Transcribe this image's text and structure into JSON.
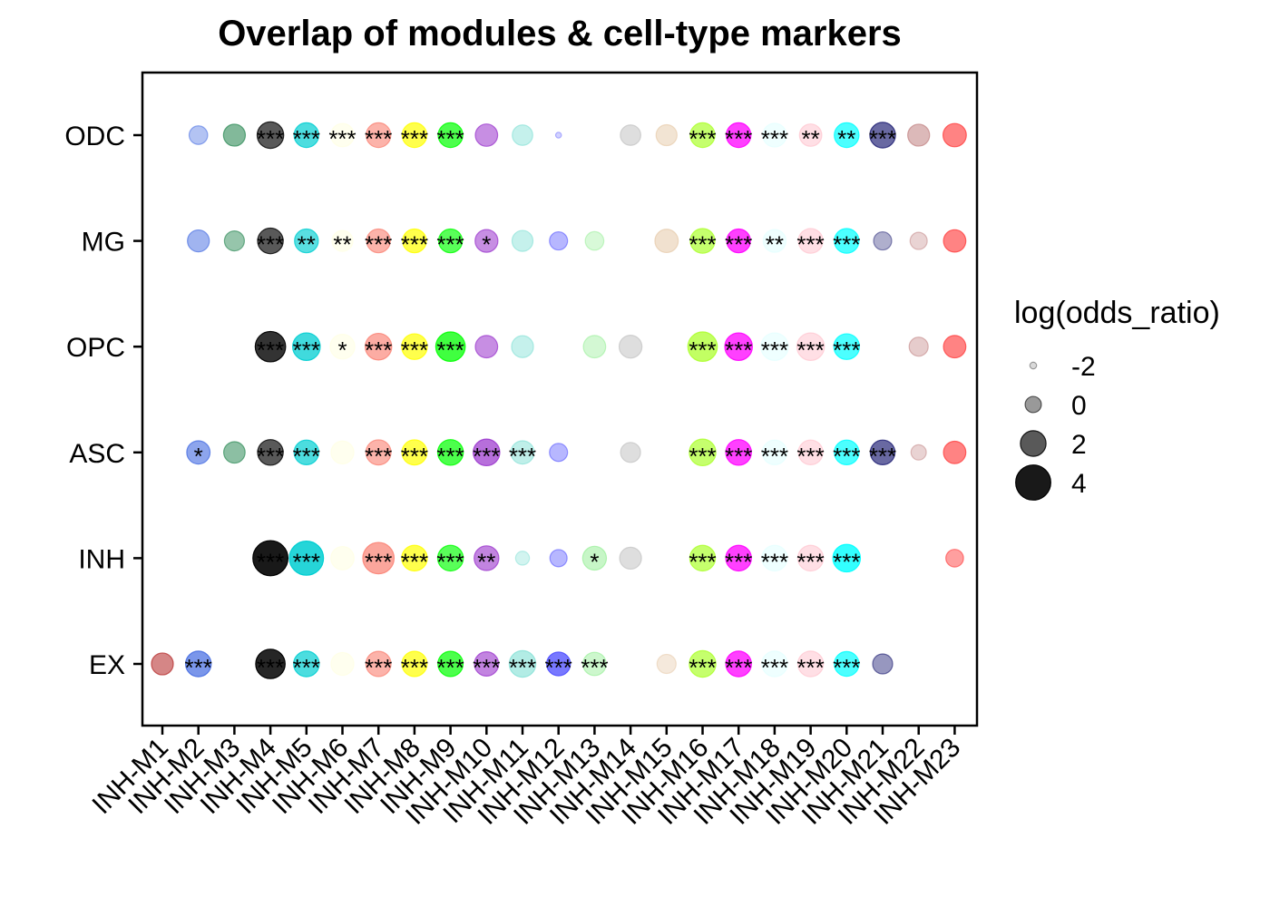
{
  "chart_data": {
    "type": "scatter",
    "title": "Overlap of modules & cell-type markers",
    "xlabel": "",
    "ylabel": "",
    "x_categories": [
      "INH-M1",
      "INH-M2",
      "INH-M3",
      "INH-M4",
      "INH-M5",
      "INH-M6",
      "INH-M7",
      "INH-M8",
      "INH-M9",
      "INH-M10",
      "INH-M11",
      "INH-M12",
      "INH-M13",
      "INH-M14",
      "INH-M15",
      "INH-M16",
      "INH-M17",
      "INH-M18",
      "INH-M19",
      "INH-M20",
      "INH-M21",
      "INH-M22",
      "INH-M23"
    ],
    "y_categories": [
      "EX",
      "INH",
      "ASC",
      "OPC",
      "MG",
      "ODC"
    ],
    "module_colors": {
      "INH-M1": "#B22222",
      "INH-M2": "#4169E1",
      "INH-M3": "#2E8B57",
      "INH-M4": "#000000",
      "INH-M5": "#00CED1",
      "INH-M6": "#FFFFE0",
      "INH-M7": "#FA8072",
      "INH-M8": "#FFFF00",
      "INH-M9": "#00FF00",
      "INH-M10": "#9932CC",
      "INH-M11": "#7FDFD4",
      "INH-M12": "#4B4BFF",
      "INH-M13": "#90EE90",
      "INH-M14": "#BEBEBE",
      "INH-M15": "#E6C9A8",
      "INH-M16": "#ADFF2F",
      "INH-M17": "#FF00FF",
      "INH-M18": "#E0FFFF",
      "INH-M19": "#FFC0CB",
      "INH-M20": "#00FFFF",
      "INH-M21": "#191970",
      "INH-M22": "#C08080",
      "INH-M23": "#FF4040"
    },
    "size_legend": {
      "title": "log(odds_ratio)",
      "breaks": [
        -2,
        0,
        2,
        4
      ]
    },
    "points": {
      "ODC": [
        {
          "m": "INH-M2",
          "lor": 0.5,
          "a": 0.4,
          "sig": ""
        },
        {
          "m": "INH-M3",
          "lor": 1.2,
          "a": 0.6,
          "sig": ""
        },
        {
          "m": "INH-M4",
          "lor": 2.2,
          "a": 0.65,
          "sig": "***"
        },
        {
          "m": "INH-M5",
          "lor": 1.8,
          "a": 0.7,
          "sig": "***"
        },
        {
          "m": "INH-M6",
          "lor": 1.5,
          "a": 0.5,
          "sig": "***"
        },
        {
          "m": "INH-M7",
          "lor": 1.8,
          "a": 0.6,
          "sig": "***"
        },
        {
          "m": "INH-M8",
          "lor": 1.8,
          "a": 0.7,
          "sig": "***"
        },
        {
          "m": "INH-M9",
          "lor": 1.8,
          "a": 0.7,
          "sig": "***"
        },
        {
          "m": "INH-M10",
          "lor": 1.3,
          "a": 0.55,
          "sig": ""
        },
        {
          "m": "INH-M11",
          "lor": 0.9,
          "a": 0.45,
          "sig": ""
        },
        {
          "m": "INH-M12",
          "lor": -2.2,
          "a": 0.25,
          "sig": ""
        },
        {
          "m": "INH-M14",
          "lor": 0.9,
          "a": 0.5,
          "sig": ""
        },
        {
          "m": "INH-M15",
          "lor": 1.0,
          "a": 0.5,
          "sig": ""
        },
        {
          "m": "INH-M16",
          "lor": 1.8,
          "a": 0.7,
          "sig": "***"
        },
        {
          "m": "INH-M17",
          "lor": 1.8,
          "a": 0.75,
          "sig": "***"
        },
        {
          "m": "INH-M18",
          "lor": 1.6,
          "a": 0.5,
          "sig": "***"
        },
        {
          "m": "INH-M19",
          "lor": 1.3,
          "a": 0.5,
          "sig": "**"
        },
        {
          "m": "INH-M20",
          "lor": 1.8,
          "a": 0.7,
          "sig": "**"
        },
        {
          "m": "INH-M21",
          "lor": 2.0,
          "a": 0.65,
          "sig": "***"
        },
        {
          "m": "INH-M22",
          "lor": 1.2,
          "a": 0.55,
          "sig": ""
        },
        {
          "m": "INH-M23",
          "lor": 1.5,
          "a": 0.65,
          "sig": ""
        }
      ],
      "MG": [
        {
          "m": "INH-M2",
          "lor": 1.2,
          "a": 0.5,
          "sig": ""
        },
        {
          "m": "INH-M3",
          "lor": 0.8,
          "a": 0.5,
          "sig": ""
        },
        {
          "m": "INH-M4",
          "lor": 2.0,
          "a": 0.65,
          "sig": "***"
        },
        {
          "m": "INH-M5",
          "lor": 1.6,
          "a": 0.65,
          "sig": "**"
        },
        {
          "m": "INH-M6",
          "lor": 1.0,
          "a": 0.5,
          "sig": "**"
        },
        {
          "m": "INH-M7",
          "lor": 1.6,
          "a": 0.6,
          "sig": "***"
        },
        {
          "m": "INH-M8",
          "lor": 1.6,
          "a": 0.7,
          "sig": "***"
        },
        {
          "m": "INH-M9",
          "lor": 1.6,
          "a": 0.65,
          "sig": "***"
        },
        {
          "m": "INH-M10",
          "lor": 1.4,
          "a": 0.55,
          "sig": "*"
        },
        {
          "m": "INH-M11",
          "lor": 1.0,
          "a": 0.45,
          "sig": ""
        },
        {
          "m": "INH-M12",
          "lor": 0.4,
          "a": 0.4,
          "sig": ""
        },
        {
          "m": "INH-M13",
          "lor": 0.5,
          "a": 0.35,
          "sig": ""
        },
        {
          "m": "INH-M15",
          "lor": 1.5,
          "a": 0.55,
          "sig": ""
        },
        {
          "m": "INH-M16",
          "lor": 1.8,
          "a": 0.7,
          "sig": "***"
        },
        {
          "m": "INH-M17",
          "lor": 1.6,
          "a": 0.75,
          "sig": "***"
        },
        {
          "m": "INH-M18",
          "lor": 1.4,
          "a": 0.5,
          "sig": "**"
        },
        {
          "m": "INH-M19",
          "lor": 1.8,
          "a": 0.5,
          "sig": "***"
        },
        {
          "m": "INH-M20",
          "lor": 1.8,
          "a": 0.7,
          "sig": "***"
        },
        {
          "m": "INH-M21",
          "lor": 0.4,
          "a": 0.35,
          "sig": ""
        },
        {
          "m": "INH-M22",
          "lor": 0.2,
          "a": 0.35,
          "sig": ""
        },
        {
          "m": "INH-M23",
          "lor": 1.3,
          "a": 0.65,
          "sig": ""
        }
      ],
      "OPC": [
        {
          "m": "INH-M4",
          "lor": 3.0,
          "a": 0.8,
          "sig": "***"
        },
        {
          "m": "INH-M5",
          "lor": 2.4,
          "a": 0.75,
          "sig": "***"
        },
        {
          "m": "INH-M6",
          "lor": 1.8,
          "a": 0.5,
          "sig": "*"
        },
        {
          "m": "INH-M7",
          "lor": 2.2,
          "a": 0.65,
          "sig": "***"
        },
        {
          "m": "INH-M8",
          "lor": 2.0,
          "a": 0.7,
          "sig": "***"
        },
        {
          "m": "INH-M9",
          "lor": 2.8,
          "a": 0.75,
          "sig": "***"
        },
        {
          "m": "INH-M10",
          "lor": 1.3,
          "a": 0.55,
          "sig": ""
        },
        {
          "m": "INH-M11",
          "lor": 1.2,
          "a": 0.45,
          "sig": ""
        },
        {
          "m": "INH-M13",
          "lor": 1.3,
          "a": 0.4,
          "sig": ""
        },
        {
          "m": "INH-M14",
          "lor": 1.4,
          "a": 0.5,
          "sig": ""
        },
        {
          "m": "INH-M16",
          "lor": 2.8,
          "a": 0.75,
          "sig": "***"
        },
        {
          "m": "INH-M17",
          "lor": 2.4,
          "a": 0.75,
          "sig": "***"
        },
        {
          "m": "INH-M18",
          "lor": 2.4,
          "a": 0.5,
          "sig": "***"
        },
        {
          "m": "INH-M19",
          "lor": 2.4,
          "a": 0.5,
          "sig": "***"
        },
        {
          "m": "INH-M20",
          "lor": 2.0,
          "a": 0.7,
          "sig": "***"
        },
        {
          "m": "INH-M22",
          "lor": 0.6,
          "a": 0.4,
          "sig": ""
        },
        {
          "m": "INH-M23",
          "lor": 1.3,
          "a": 0.65,
          "sig": ""
        }
      ],
      "ASC": [
        {
          "m": "INH-M2",
          "lor": 1.5,
          "a": 0.6,
          "sig": "*"
        },
        {
          "m": "INH-M3",
          "lor": 1.1,
          "a": 0.55,
          "sig": ""
        },
        {
          "m": "INH-M4",
          "lor": 2.0,
          "a": 0.65,
          "sig": "***"
        },
        {
          "m": "INH-M5",
          "lor": 1.8,
          "a": 0.7,
          "sig": "***"
        },
        {
          "m": "INH-M6",
          "lor": 1.4,
          "a": 0.5,
          "sig": ""
        },
        {
          "m": "INH-M7",
          "lor": 1.9,
          "a": 0.6,
          "sig": "***"
        },
        {
          "m": "INH-M8",
          "lor": 1.9,
          "a": 0.7,
          "sig": "***"
        },
        {
          "m": "INH-M9",
          "lor": 2.0,
          "a": 0.7,
          "sig": "***"
        },
        {
          "m": "INH-M10",
          "lor": 2.2,
          "a": 0.7,
          "sig": "***"
        },
        {
          "m": "INH-M11",
          "lor": 1.5,
          "a": 0.5,
          "sig": "***"
        },
        {
          "m": "INH-M12",
          "lor": 0.4,
          "a": 0.4,
          "sig": ""
        },
        {
          "m": "INH-M14",
          "lor": 0.8,
          "a": 0.5,
          "sig": ""
        },
        {
          "m": "INH-M16",
          "lor": 2.2,
          "a": 0.7,
          "sig": "***"
        },
        {
          "m": "INH-M17",
          "lor": 2.0,
          "a": 0.75,
          "sig": "***"
        },
        {
          "m": "INH-M18",
          "lor": 1.8,
          "a": 0.5,
          "sig": "***"
        },
        {
          "m": "INH-M19",
          "lor": 1.8,
          "a": 0.5,
          "sig": "***"
        },
        {
          "m": "INH-M20",
          "lor": 1.8,
          "a": 0.7,
          "sig": "***"
        },
        {
          "m": "INH-M21",
          "lor": 1.8,
          "a": 0.65,
          "sig": "***"
        },
        {
          "m": "INH-M22",
          "lor": -0.2,
          "a": 0.35,
          "sig": ""
        },
        {
          "m": "INH-M23",
          "lor": 1.3,
          "a": 0.65,
          "sig": ""
        }
      ],
      "INH": [
        {
          "m": "INH-M4",
          "lor": 4.0,
          "a": 0.9,
          "sig": "***"
        },
        {
          "m": "INH-M5",
          "lor": 3.8,
          "a": 0.85,
          "sig": "***"
        },
        {
          "m": "INH-M6",
          "lor": 1.5,
          "a": 0.5,
          "sig": ""
        },
        {
          "m": "INH-M7",
          "lor": 3.2,
          "a": 0.7,
          "sig": "***"
        },
        {
          "m": "INH-M8",
          "lor": 2.0,
          "a": 0.7,
          "sig": "***"
        },
        {
          "m": "INH-M9",
          "lor": 2.0,
          "a": 0.65,
          "sig": "***"
        },
        {
          "m": "INH-M10",
          "lor": 1.8,
          "a": 0.6,
          "sig": "**"
        },
        {
          "m": "INH-M11",
          "lor": -0.5,
          "a": 0.35,
          "sig": ""
        },
        {
          "m": "INH-M12",
          "lor": 0.2,
          "a": 0.4,
          "sig": ""
        },
        {
          "m": "INH-M13",
          "lor": 1.6,
          "a": 0.5,
          "sig": "*"
        },
        {
          "m": "INH-M14",
          "lor": 1.2,
          "a": 0.5,
          "sig": ""
        },
        {
          "m": "INH-M16",
          "lor": 2.0,
          "a": 0.7,
          "sig": "***"
        },
        {
          "m": "INH-M17",
          "lor": 2.0,
          "a": 0.75,
          "sig": "***"
        },
        {
          "m": "INH-M18",
          "lor": 2.0,
          "a": 0.5,
          "sig": "***"
        },
        {
          "m": "INH-M19",
          "lor": 2.0,
          "a": 0.5,
          "sig": "***"
        },
        {
          "m": "INH-M20",
          "lor": 2.4,
          "a": 0.8,
          "sig": "***"
        },
        {
          "m": "INH-M23",
          "lor": 0.3,
          "a": 0.5,
          "sig": ""
        }
      ],
      "EX": [
        {
          "m": "INH-M1",
          "lor": 1.2,
          "a": 0.55,
          "sig": ""
        },
        {
          "m": "INH-M2",
          "lor": 2.0,
          "a": 0.7,
          "sig": "***"
        },
        {
          "m": "INH-M4",
          "lor": 2.8,
          "a": 0.85,
          "sig": "***"
        },
        {
          "m": "INH-M5",
          "lor": 2.0,
          "a": 0.7,
          "sig": "***"
        },
        {
          "m": "INH-M6",
          "lor": 1.4,
          "a": 0.5,
          "sig": ""
        },
        {
          "m": "INH-M7",
          "lor": 1.9,
          "a": 0.6,
          "sig": "***"
        },
        {
          "m": "INH-M8",
          "lor": 1.9,
          "a": 0.7,
          "sig": "***"
        },
        {
          "m": "INH-M9",
          "lor": 1.9,
          "a": 0.7,
          "sig": "***"
        },
        {
          "m": "INH-M10",
          "lor": 1.7,
          "a": 0.6,
          "sig": "***"
        },
        {
          "m": "INH-M11",
          "lor": 2.2,
          "a": 0.6,
          "sig": "***"
        },
        {
          "m": "INH-M12",
          "lor": 1.6,
          "a": 0.75,
          "sig": "***"
        },
        {
          "m": "INH-M13",
          "lor": 1.5,
          "a": 0.45,
          "sig": "***"
        },
        {
          "m": "INH-M15",
          "lor": 0.6,
          "a": 0.4,
          "sig": ""
        },
        {
          "m": "INH-M16",
          "lor": 2.2,
          "a": 0.7,
          "sig": "***"
        },
        {
          "m": "INH-M17",
          "lor": 2.0,
          "a": 0.75,
          "sig": "***"
        },
        {
          "m": "INH-M18",
          "lor": 2.0,
          "a": 0.5,
          "sig": "***"
        },
        {
          "m": "INH-M19",
          "lor": 2.0,
          "a": 0.5,
          "sig": "***"
        },
        {
          "m": "INH-M20",
          "lor": 1.8,
          "a": 0.7,
          "sig": "***"
        },
        {
          "m": "INH-M21",
          "lor": 0.8,
          "a": 0.45,
          "sig": ""
        }
      ]
    }
  }
}
